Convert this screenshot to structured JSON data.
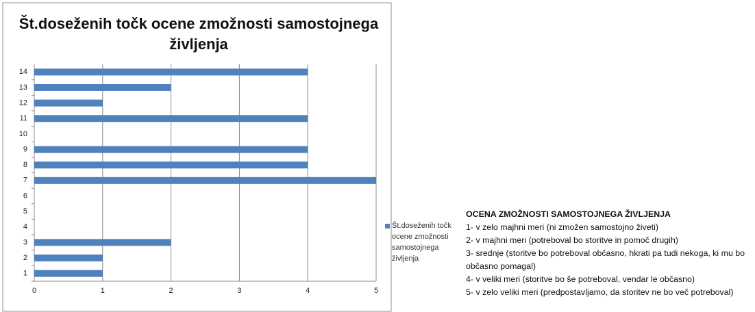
{
  "chart_data": {
    "type": "bar",
    "orientation": "horizontal",
    "title": "Št.doseženih točk ocene zmožnosti samostojnega življenja",
    "categories": [
      "1",
      "2",
      "3",
      "4",
      "5",
      "6",
      "7",
      "8",
      "9",
      "10",
      "11",
      "12",
      "13",
      "14"
    ],
    "series": [
      {
        "name": "Št.doseženih točk ocene zmožnosti samostojnega življenja",
        "color": "#4f81bd",
        "values": [
          1,
          1,
          2,
          null,
          null,
          null,
          5,
          4,
          4,
          null,
          4,
          1,
          2,
          4
        ]
      }
    ],
    "xlim": [
      0,
      5
    ],
    "xticks": [
      0,
      1,
      2,
      3,
      4,
      5
    ],
    "grid": true,
    "legend": "right",
    "notes": {
      "title": "OCENA ZMOŽNOSTI SAMOSTOJNEGA ŽIVLJENJA",
      "items": [
        "1- v zelo majhni meri (ni zmožen samostojno živeti)",
        "2- v majhni meri (potreboval bo storitve in pomoč drugih)",
        "3- srednje (storitve bo potreboval občasno, hkrati pa tudi nekoga, ki mu bo občasno pomagal)",
        "4- v veliki meri (storitve bo še potreboval, vendar le občasno)",
        "5- v zelo veliki meri (predpostavljamo, da storitev ne bo več potreboval)"
      ]
    }
  }
}
